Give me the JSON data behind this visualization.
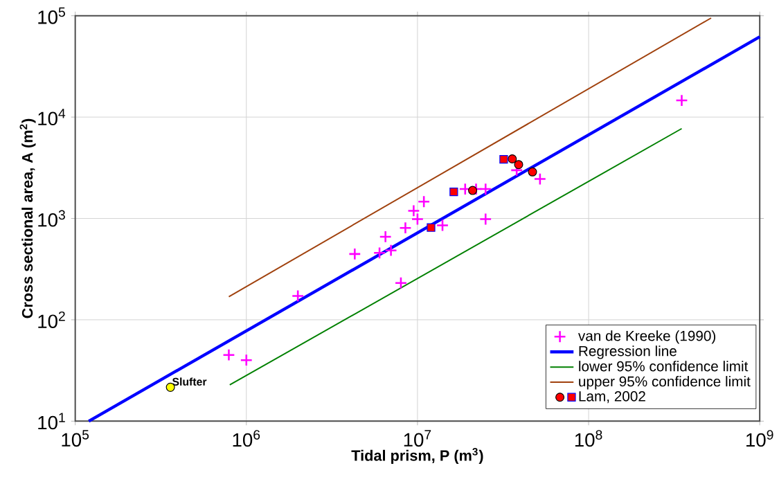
{
  "chart_data": {
    "type": "scatter",
    "xlabel": "Tidal prism, P (m$^{3}$)",
    "ylabel": "Cross sectional area, A (m$^{2}$)",
    "log": "xy",
    "grid": true,
    "legend": "bottom right",
    "xlim": [
      100000,
      1000000000
    ],
    "ylim": [
      10,
      100000
    ],
    "xticks": [
      {
        "value": 100000,
        "label": "10$^{5}$"
      },
      {
        "value": 1000000,
        "label": "10$^{6}$"
      },
      {
        "value": 10000000,
        "label": "10$^{7}$"
      },
      {
        "value": 100000000,
        "label": "10$^{8}$"
      },
      {
        "value": 1000000000,
        "label": "10$^{9}$"
      }
    ],
    "yticks": [
      {
        "value": 10,
        "label": "10$^{1}$"
      },
      {
        "value": 100,
        "label": "10$^{2}$"
      },
      {
        "value": 1000,
        "label": "10$^{3}$"
      },
      {
        "value": 10000,
        "label": "10$^{4}$"
      },
      {
        "value": 100000,
        "label": "10$^{5}$"
      }
    ],
    "annotations": [
      {
        "text": "Slufter",
        "x": 360000,
        "y": 21.6
      }
    ],
    "series": [
      {
        "marker": "circle",
        "color": "#ffff00",
        "x": [
          360000
        ],
        "values": [
          21.6
        ]
      },
      {
        "name": "van de Kreeke (1990)",
        "marker": "cross",
        "color": "#ff00ff",
        "x": [
          790000,
          1000000,
          2000000,
          4300000,
          6000000,
          7000000,
          6500000,
          8500000,
          8000000,
          9500000,
          10000000,
          10900000,
          14000000,
          19000000,
          22000000,
          25000000,
          25000000,
          38000000,
          52000000,
          350000000
        ],
        "values": [
          45,
          40,
          172,
          446,
          457,
          484,
          660,
          807,
          231,
          1190,
          985,
          1465,
          855,
          1950,
          1950,
          1950,
          985,
          2990,
          2450,
          14600
        ]
      },
      {
        "name": "Regression line",
        "type": "line",
        "color": "#0000ff",
        "x": [
          120000,
          1000000000
        ],
        "values": [
          10,
          62000
        ]
      },
      {
        "name": "lower 95% confidence limit",
        "type": "line",
        "color": "#008000",
        "x": [
          800000,
          350000000
        ],
        "values": [
          22.8,
          7700
        ]
      },
      {
        "name": "upper 95% confidence limit",
        "type": "line",
        "color": "#a0410d",
        "x": [
          790000,
          520000000
        ],
        "values": [
          169,
          95000
        ]
      },
      {
        "name": "Lam, 2002",
        "marker": "circle",
        "color": "#ff0000",
        "x": [
          21000000,
          35800000,
          39000000,
          47000000
        ],
        "values": [
          1890,
          3870,
          3400,
          2880
        ]
      },
      {
        "marker": "square",
        "color": "#ff0000",
        "x": [
          12000000,
          16300000,
          31900000
        ],
        "values": [
          813,
          1830,
          3830
        ]
      }
    ]
  }
}
